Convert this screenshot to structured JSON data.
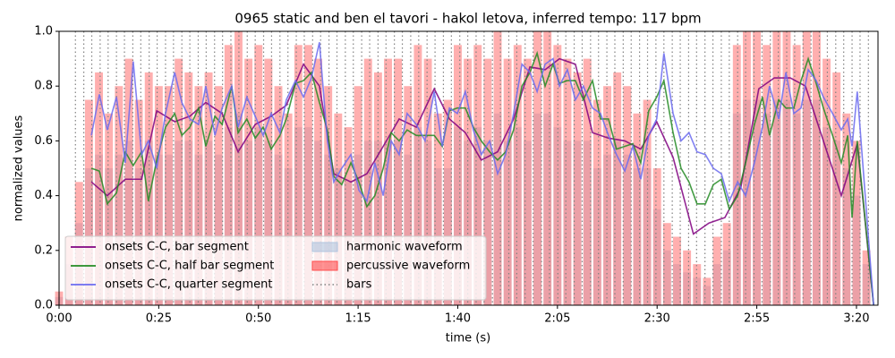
{
  "chart_data": {
    "type": "line",
    "title": "0965 static and ben el tavori - hakol letova, inferred tempo: 117 bpm",
    "x_label": "time (s)",
    "y_label": "normalized values",
    "xlim": [
      0,
      205.4
    ],
    "ylim": [
      0,
      1
    ],
    "xticks": [
      {
        "value": 0,
        "label": "0:00"
      },
      {
        "value": 25,
        "label": "0:25"
      },
      {
        "value": 50,
        "label": "0:50"
      },
      {
        "value": 75,
        "label": "1:15"
      },
      {
        "value": 100,
        "label": "1:40"
      },
      {
        "value": 125,
        "label": "2:05"
      },
      {
        "value": 150,
        "label": "2:30"
      },
      {
        "value": 175,
        "label": "2:55"
      },
      {
        "value": 200,
        "label": "3:20"
      }
    ],
    "yticks": [
      {
        "value": 0,
        "label": "0.0"
      },
      0.2,
      0.4,
      0.6,
      0.8,
      {
        "value": 1,
        "label": "1.0"
      }
    ],
    "legend": "lower left",
    "legend_columns": 2,
    "series": [
      {
        "name": "onsets C-C, bar segment",
        "type": "line",
        "color": "#800080",
        "x": [
          8.1,
          12.1,
          16.6,
          20.7,
          24.5,
          29.0,
          32.8,
          36.8,
          40.9,
          44.9,
          49.2,
          53.2,
          57.0,
          61.3,
          65.3,
          68.9,
          73.2,
          77.2,
          81.3,
          85.3,
          89.6,
          94.1,
          97.9,
          101.9,
          105.9,
          110.0,
          114.0,
          118.1,
          121.9,
          125.5,
          129.5,
          133.8,
          137.8,
          141.9,
          145.9,
          149.9,
          154.0,
          159.1,
          163.0,
          167.0,
          171.0,
          175.5,
          179.4,
          183.4,
          187.2,
          191.7,
          196.2,
          200.2,
          204.3
        ],
        "values": [
          0.45,
          0.4,
          0.46,
          0.46,
          0.71,
          0.67,
          0.69,
          0.74,
          0.7,
          0.56,
          0.66,
          0.69,
          0.73,
          0.88,
          0.8,
          0.48,
          0.45,
          0.48,
          0.58,
          0.68,
          0.65,
          0.79,
          0.68,
          0.63,
          0.53,
          0.56,
          0.68,
          0.87,
          0.86,
          0.9,
          0.88,
          0.63,
          0.61,
          0.6,
          0.57,
          0.67,
          0.54,
          0.26,
          0.3,
          0.32,
          0.43,
          0.79,
          0.83,
          0.83,
          0.8,
          0.6,
          0.4,
          0.59,
          0.0
        ]
      },
      {
        "name": "onsets C-C, half bar segment",
        "type": "line",
        "color": "#238b23",
        "x": [
          8.1,
          10.1,
          12.1,
          14.4,
          16.6,
          18.6,
          20.7,
          22.4,
          24.5,
          26.7,
          29.0,
          30.8,
          32.8,
          35.0,
          36.8,
          39.1,
          40.9,
          43.3,
          44.9,
          47.1,
          49.2,
          51.2,
          53.2,
          55.4,
          57.0,
          59.3,
          61.3,
          63.3,
          65.3,
          67.3,
          68.9,
          70.9,
          73.2,
          75.2,
          77.2,
          79.2,
          81.3,
          83.3,
          85.3,
          87.3,
          89.6,
          91.8,
          94.1,
          96.1,
          97.9,
          99.9,
          101.9,
          103.9,
          105.9,
          108.0,
          110.0,
          112.0,
          114.0,
          116.1,
          118.1,
          119.9,
          121.9,
          123.9,
          125.5,
          127.5,
          129.5,
          131.5,
          133.8,
          135.8,
          137.8,
          139.8,
          141.9,
          143.9,
          145.9,
          147.9,
          149.9,
          151.7,
          154.0,
          156.0,
          158.0,
          160.0,
          162.1,
          164.1,
          166.1,
          168.1,
          170.2,
          172.2,
          174.4,
          176.4,
          178.2,
          180.5,
          182.3,
          184.3,
          186.1,
          187.9,
          189.9,
          191.7,
          194.0,
          196.2,
          197.8,
          198.9,
          200.2,
          204.3
        ],
        "values": [
          0.5,
          0.49,
          0.37,
          0.41,
          0.56,
          0.51,
          0.56,
          0.38,
          0.53,
          0.65,
          0.7,
          0.62,
          0.65,
          0.72,
          0.58,
          0.69,
          0.66,
          0.8,
          0.63,
          0.68,
          0.61,
          0.65,
          0.57,
          0.62,
          0.68,
          0.81,
          0.82,
          0.85,
          0.74,
          0.64,
          0.47,
          0.44,
          0.52,
          0.45,
          0.36,
          0.4,
          0.5,
          0.63,
          0.6,
          0.64,
          0.62,
          0.62,
          0.62,
          0.58,
          0.71,
          0.72,
          0.72,
          0.65,
          0.6,
          0.56,
          0.53,
          0.56,
          0.64,
          0.8,
          0.85,
          0.92,
          0.8,
          0.88,
          0.81,
          0.82,
          0.82,
          0.75,
          0.82,
          0.68,
          0.68,
          0.57,
          0.58,
          0.59,
          0.52,
          0.71,
          0.76,
          0.82,
          0.63,
          0.5,
          0.45,
          0.37,
          0.37,
          0.44,
          0.46,
          0.35,
          0.4,
          0.52,
          0.66,
          0.76,
          0.62,
          0.75,
          0.72,
          0.72,
          0.82,
          0.9,
          0.81,
          0.72,
          0.62,
          0.52,
          0.62,
          0.32,
          0.6,
          0.0
        ]
      },
      {
        "name": "onsets C-C, quarter segment",
        "type": "line",
        "color": "#6b6bf0",
        "x": [
          8.1,
          10.1,
          12.1,
          14.4,
          16.6,
          18.6,
          20.7,
          22.4,
          24.5,
          26.7,
          29.0,
          30.8,
          32.8,
          35.0,
          36.8,
          39.1,
          40.9,
          43.3,
          44.9,
          47.1,
          49.2,
          51.2,
          53.2,
          55.4,
          57.0,
          59.3,
          61.3,
          63.3,
          65.3,
          67.3,
          68.9,
          70.9,
          73.2,
          75.2,
          77.2,
          79.2,
          81.3,
          83.3,
          85.3,
          87.3,
          89.6,
          91.8,
          94.1,
          96.1,
          97.9,
          99.9,
          101.9,
          103.9,
          105.9,
          108.0,
          110.0,
          112.0,
          114.0,
          116.1,
          118.1,
          119.9,
          121.9,
          123.9,
          125.5,
          127.5,
          129.5,
          131.5,
          133.8,
          135.8,
          137.8,
          139.8,
          141.9,
          143.9,
          145.9,
          147.9,
          149.9,
          151.7,
          154.0,
          156.0,
          158.0,
          160.0,
          162.1,
          164.1,
          166.1,
          168.1,
          170.2,
          172.2,
          174.4,
          176.4,
          178.2,
          180.5,
          182.3,
          184.3,
          186.1,
          187.9,
          189.9,
          191.7,
          194.0,
          196.2,
          197.8,
          198.9,
          200.2,
          204.3
        ],
        "values": [
          0.62,
          0.77,
          0.64,
          0.76,
          0.52,
          0.89,
          0.55,
          0.6,
          0.5,
          0.7,
          0.85,
          0.74,
          0.68,
          0.66,
          0.8,
          0.62,
          0.72,
          0.8,
          0.65,
          0.76,
          0.69,
          0.62,
          0.7,
          0.63,
          0.75,
          0.82,
          0.76,
          0.83,
          0.96,
          0.6,
          0.45,
          0.5,
          0.55,
          0.42,
          0.38,
          0.52,
          0.4,
          0.6,
          0.55,
          0.7,
          0.66,
          0.6,
          0.78,
          0.58,
          0.72,
          0.7,
          0.78,
          0.64,
          0.55,
          0.6,
          0.48,
          0.55,
          0.7,
          0.88,
          0.85,
          0.78,
          0.88,
          0.9,
          0.8,
          0.86,
          0.75,
          0.8,
          0.72,
          0.7,
          0.62,
          0.55,
          0.49,
          0.58,
          0.46,
          0.62,
          0.68,
          0.92,
          0.7,
          0.6,
          0.63,
          0.56,
          0.55,
          0.5,
          0.48,
          0.38,
          0.45,
          0.4,
          0.52,
          0.65,
          0.8,
          0.68,
          0.85,
          0.7,
          0.72,
          0.86,
          0.82,
          0.76,
          0.7,
          0.64,
          0.68,
          0.58,
          0.78,
          0.0
        ]
      },
      {
        "name": "harmonic waveform",
        "type": "area",
        "color": "#b0c4de",
        "x": [
          0,
          2.5,
          5,
          7.5,
          10,
          12.5,
          15,
          17.5,
          20,
          22.5,
          25,
          27.5,
          30,
          32.5,
          35,
          37.5,
          40,
          42.5,
          45,
          47.5,
          50,
          52.5,
          55,
          57.5,
          60,
          62.5,
          65,
          67.5,
          70,
          72.5,
          75,
          77.5,
          80,
          82.5,
          85,
          87.5,
          90,
          92.5,
          95,
          97.5,
          100,
          102.5,
          105,
          107.5,
          110,
          112.5,
          115,
          117.5,
          120,
          122.5,
          125,
          127.5,
          130,
          132.5,
          135,
          137.5,
          140,
          142.5,
          145,
          147.5,
          150,
          152.5,
          155,
          157.5,
          160,
          162.5,
          165,
          167.5,
          170,
          172.5,
          175,
          177.5,
          180,
          182.5,
          185,
          187.5,
          190,
          192.5,
          195,
          197.5,
          200,
          202.5,
          205
        ],
        "values": [
          0.03,
          0.15,
          0.3,
          0.5,
          0.55,
          0.5,
          0.55,
          0.6,
          0.5,
          0.6,
          0.55,
          0.55,
          0.6,
          0.6,
          0.55,
          0.6,
          0.55,
          0.65,
          0.7,
          0.6,
          0.65,
          0.6,
          0.55,
          0.5,
          0.65,
          0.65,
          0.6,
          0.55,
          0.5,
          0.45,
          0.55,
          0.6,
          0.6,
          0.6,
          0.6,
          0.55,
          0.65,
          0.6,
          0.5,
          0.5,
          0.65,
          0.6,
          0.65,
          0.6,
          0.7,
          0.6,
          0.65,
          0.6,
          0.7,
          0.7,
          0.65,
          0.6,
          0.6,
          0.6,
          0.5,
          0.55,
          0.6,
          0.55,
          0.5,
          0.5,
          0.35,
          0.2,
          0.15,
          0.12,
          0.1,
          0.07,
          0.15,
          0.2,
          0.7,
          0.75,
          0.75,
          0.7,
          0.75,
          0.75,
          0.7,
          0.75,
          0.75,
          0.65,
          0.6,
          0.5,
          0.4,
          0.15,
          0.0
        ]
      },
      {
        "name": "percussive waveform",
        "type": "area",
        "color": "#ff4d4d",
        "x": [
          0,
          2.5,
          5,
          7.5,
          10,
          12.5,
          15,
          17.5,
          20,
          22.5,
          25,
          27.5,
          30,
          32.5,
          35,
          37.5,
          40,
          42.5,
          45,
          47.5,
          50,
          52.5,
          55,
          57.5,
          60,
          62.5,
          65,
          67.5,
          70,
          72.5,
          75,
          77.5,
          80,
          82.5,
          85,
          87.5,
          90,
          92.5,
          95,
          97.5,
          100,
          102.5,
          105,
          107.5,
          110,
          112.5,
          115,
          117.5,
          120,
          122.5,
          125,
          127.5,
          130,
          132.5,
          135,
          137.5,
          140,
          142.5,
          145,
          147.5,
          150,
          152.5,
          155,
          157.5,
          160,
          162.5,
          165,
          167.5,
          170,
          172.5,
          175,
          177.5,
          180,
          182.5,
          185,
          187.5,
          190,
          192.5,
          195,
          197.5,
          200,
          202.5,
          205
        ],
        "values": [
          0.05,
          0.25,
          0.45,
          0.75,
          0.85,
          0.7,
          0.8,
          0.9,
          0.75,
          0.85,
          0.8,
          0.8,
          0.9,
          0.85,
          0.8,
          0.85,
          0.8,
          0.95,
          1.0,
          0.9,
          0.95,
          0.9,
          0.8,
          0.7,
          0.95,
          0.95,
          0.9,
          0.8,
          0.7,
          0.65,
          0.8,
          0.9,
          0.85,
          0.9,
          0.9,
          0.8,
          0.95,
          0.9,
          0.7,
          0.75,
          0.95,
          0.9,
          0.95,
          0.9,
          1.0,
          0.9,
          0.95,
          0.9,
          1.0,
          1.0,
          0.95,
          0.9,
          0.85,
          0.9,
          0.75,
          0.8,
          0.85,
          0.8,
          0.7,
          0.75,
          0.5,
          0.3,
          0.25,
          0.2,
          0.15,
          0.1,
          0.25,
          0.3,
          0.95,
          1.0,
          1.0,
          0.95,
          1.0,
          1.0,
          0.95,
          1.0,
          1.0,
          0.9,
          0.85,
          0.7,
          0.6,
          0.2,
          0.0
        ]
      },
      {
        "name": "bars",
        "type": "vline",
        "color": "#808080",
        "x": [
          4.1,
          6.2,
          8.2,
          10.3,
          12.3,
          14.4,
          16.4,
          18.5,
          20.5,
          22.6,
          24.6,
          26.7,
          28.7,
          30.8,
          32.8,
          34.9,
          36.9,
          39.0,
          41.0,
          43.1,
          45.1,
          47.2,
          49.2,
          51.3,
          53.3,
          55.4,
          57.4,
          59.5,
          61.5,
          63.6,
          65.6,
          67.7,
          69.7,
          71.8,
          73.8,
          75.9,
          77.9,
          80.0,
          82.0,
          84.1,
          86.1,
          88.2,
          90.2,
          92.3,
          94.3,
          96.4,
          98.4,
          100.5,
          102.5,
          104.6,
          106.6,
          108.7,
          110.7,
          112.8,
          114.8,
          116.9,
          118.9,
          121.0,
          123.0,
          125.1,
          127.1,
          129.2,
          131.2,
          133.3,
          135.3,
          137.4,
          139.4,
          141.5,
          143.5,
          145.6,
          147.6,
          149.7,
          151.7,
          153.8,
          155.8,
          157.9,
          159.9,
          162.0,
          164.0,
          166.1,
          168.1,
          170.2,
          172.2,
          174.3,
          176.3,
          178.4,
          180.4,
          182.5,
          184.5,
          186.6,
          188.6,
          190.7,
          192.7,
          194.8,
          196.8,
          198.9,
          200.9,
          203.0
        ]
      }
    ]
  }
}
